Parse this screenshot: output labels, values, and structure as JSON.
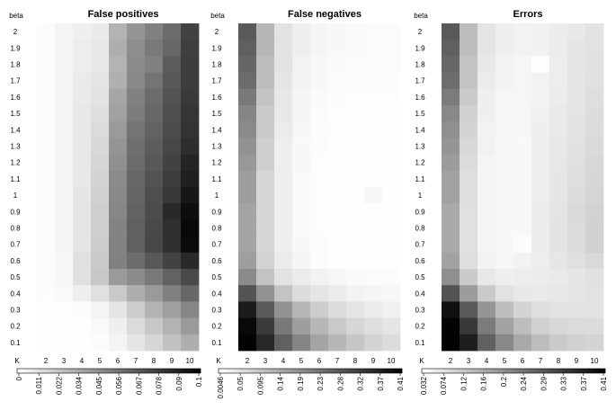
{
  "chart_data": {
    "type": "heatmap",
    "x_label": "K",
    "y_label": "beta",
    "x_ticks": [
      "2",
      "3",
      "4",
      "5",
      "6",
      "7",
      "8",
      "9",
      "10"
    ],
    "y_ticks": [
      "2",
      "1.9",
      "1.8",
      "1.7",
      "1.6",
      "1.5",
      "1.4",
      "1.3",
      "1.2",
      "1.1",
      "1",
      "0.9",
      "0.8",
      "0.7",
      "0.6",
      "0.5",
      "0.4",
      "0.3",
      "0.2",
      "0.1"
    ],
    "colormap": "white-to-black",
    "panels": [
      {
        "title": "False positives",
        "vmin": 0,
        "vmax": 0.1,
        "colorbar_ticks": [
          "0",
          "0.011",
          "0.022",
          "0.034",
          "0.045",
          "0.056",
          "0.067",
          "0.078",
          "0.09",
          "0.1"
        ],
        "values": [
          [
            0.001,
            0.004,
            0.006,
            0.008,
            0.03,
            0.042,
            0.05,
            0.058,
            0.075
          ],
          [
            0.001,
            0.004,
            0.007,
            0.009,
            0.032,
            0.045,
            0.053,
            0.06,
            0.076
          ],
          [
            0.001,
            0.004,
            0.007,
            0.009,
            0.03,
            0.046,
            0.05,
            0.065,
            0.077
          ],
          [
            0.001,
            0.004,
            0.008,
            0.01,
            0.031,
            0.047,
            0.055,
            0.066,
            0.077
          ],
          [
            0.001,
            0.004,
            0.008,
            0.011,
            0.035,
            0.05,
            0.058,
            0.068,
            0.078
          ],
          [
            0.001,
            0.004,
            0.009,
            0.013,
            0.037,
            0.052,
            0.06,
            0.07,
            0.08
          ],
          [
            0.001,
            0.004,
            0.009,
            0.014,
            0.04,
            0.055,
            0.062,
            0.071,
            0.081
          ],
          [
            0.001,
            0.004,
            0.009,
            0.015,
            0.042,
            0.057,
            0.064,
            0.073,
            0.083
          ],
          [
            0.001,
            0.004,
            0.009,
            0.016,
            0.044,
            0.058,
            0.066,
            0.075,
            0.087
          ],
          [
            0.001,
            0.004,
            0.009,
            0.017,
            0.046,
            0.06,
            0.068,
            0.077,
            0.089
          ],
          [
            0.001,
            0.004,
            0.01,
            0.018,
            0.047,
            0.061,
            0.07,
            0.079,
            0.092
          ],
          [
            0.001,
            0.004,
            0.01,
            0.019,
            0.048,
            0.062,
            0.071,
            0.085,
            0.096
          ],
          [
            0.001,
            0.004,
            0.01,
            0.019,
            0.049,
            0.063,
            0.072,
            0.082,
            0.098
          ],
          [
            0.001,
            0.004,
            0.01,
            0.02,
            0.049,
            0.063,
            0.073,
            0.082,
            0.097
          ],
          [
            0.001,
            0.003,
            0.012,
            0.021,
            0.05,
            0.058,
            0.066,
            0.075,
            0.085
          ],
          [
            0.001,
            0.003,
            0.012,
            0.022,
            0.04,
            0.046,
            0.053,
            0.062,
            0.072
          ],
          [
            0.001,
            0.002,
            0.006,
            0.012,
            0.021,
            0.032,
            0.04,
            0.05,
            0.06
          ],
          [
            0.0,
            0.0,
            0.001,
            0.004,
            0.01,
            0.02,
            0.03,
            0.038,
            0.048
          ],
          [
            0.0,
            0.0,
            0.0,
            0.002,
            0.006,
            0.014,
            0.022,
            0.03,
            0.04
          ],
          [
            0.0,
            0.0,
            0.0,
            0.001,
            0.004,
            0.01,
            0.016,
            0.024,
            0.032
          ]
        ]
      },
      {
        "title": "False negatives",
        "vmin": 0.0046,
        "vmax": 0.41,
        "colorbar_ticks": [
          "0.0046",
          "0.05",
          "0.095",
          "0.14",
          "0.19",
          "0.23",
          "0.28",
          "0.32",
          "0.37",
          "0.41"
        ],
        "values": [
          [
            0.27,
            0.12,
            0.05,
            0.03,
            0.02,
            0.015,
            0.012,
            0.01,
            0.01
          ],
          [
            0.26,
            0.12,
            0.05,
            0.03,
            0.02,
            0.015,
            0.012,
            0.01,
            0.01
          ],
          [
            0.25,
            0.11,
            0.05,
            0.025,
            0.015,
            0.012,
            0.01,
            0.01,
            0.01
          ],
          [
            0.24,
            0.11,
            0.045,
            0.025,
            0.015,
            0.01,
            0.008,
            0.008,
            0.008
          ],
          [
            0.22,
            0.1,
            0.04,
            0.02,
            0.012,
            0.008,
            0.006,
            0.006,
            0.006
          ],
          [
            0.2,
            0.09,
            0.04,
            0.02,
            0.01,
            0.006,
            0.005,
            0.005,
            0.005
          ],
          [
            0.19,
            0.09,
            0.035,
            0.018,
            0.008,
            0.006,
            0.005,
            0.005,
            0.005
          ],
          [
            0.18,
            0.08,
            0.03,
            0.015,
            0.008,
            0.005,
            0.005,
            0.005,
            0.005
          ],
          [
            0.17,
            0.08,
            0.03,
            0.014,
            0.007,
            0.005,
            0.005,
            0.005,
            0.005
          ],
          [
            0.16,
            0.07,
            0.03,
            0.013,
            0.007,
            0.005,
            0.005,
            0.005,
            0.005
          ],
          [
            0.16,
            0.07,
            0.03,
            0.013,
            0.007,
            0.005,
            0.005,
            0.015,
            0.005
          ],
          [
            0.15,
            0.07,
            0.03,
            0.013,
            0.007,
            0.005,
            0.005,
            0.005,
            0.005
          ],
          [
            0.15,
            0.07,
            0.03,
            0.013,
            0.007,
            0.005,
            0.005,
            0.005,
            0.005
          ],
          [
            0.15,
            0.07,
            0.03,
            0.015,
            0.008,
            0.005,
            0.005,
            0.005,
            0.005
          ],
          [
            0.16,
            0.075,
            0.035,
            0.02,
            0.01,
            0.006,
            0.005,
            0.005,
            0.005
          ],
          [
            0.19,
            0.1,
            0.05,
            0.035,
            0.025,
            0.018,
            0.012,
            0.01,
            0.008
          ],
          [
            0.28,
            0.18,
            0.1,
            0.06,
            0.045,
            0.035,
            0.025,
            0.02,
            0.016
          ],
          [
            0.37,
            0.27,
            0.18,
            0.12,
            0.085,
            0.06,
            0.045,
            0.035,
            0.028
          ],
          [
            0.4,
            0.32,
            0.22,
            0.16,
            0.12,
            0.09,
            0.07,
            0.055,
            0.045
          ],
          [
            0.41,
            0.35,
            0.26,
            0.2,
            0.15,
            0.12,
            0.095,
            0.075,
            0.06
          ]
        ]
      },
      {
        "title": "Errors",
        "vmin": 0.032,
        "vmax": 0.41,
        "colorbar_ticks": [
          "0.032",
          "0.074",
          "0.12",
          "0.16",
          "0.2",
          "0.24",
          "0.29",
          "0.33",
          "0.37",
          "0.41"
        ],
        "values": [
          [
            0.28,
            0.13,
            0.07,
            0.055,
            0.05,
            0.052,
            0.06,
            0.065,
            0.075
          ],
          [
            0.27,
            0.13,
            0.07,
            0.055,
            0.05,
            0.052,
            0.06,
            0.068,
            0.075
          ],
          [
            0.26,
            0.12,
            0.065,
            0.05,
            0.045,
            0.033,
            0.058,
            0.07,
            0.076
          ],
          [
            0.25,
            0.12,
            0.06,
            0.05,
            0.045,
            0.05,
            0.058,
            0.07,
            0.078
          ],
          [
            0.23,
            0.11,
            0.055,
            0.045,
            0.045,
            0.05,
            0.06,
            0.07,
            0.08
          ],
          [
            0.21,
            0.1,
            0.055,
            0.045,
            0.045,
            0.052,
            0.062,
            0.072,
            0.082
          ],
          [
            0.2,
            0.095,
            0.05,
            0.045,
            0.045,
            0.055,
            0.064,
            0.074,
            0.085
          ],
          [
            0.19,
            0.09,
            0.05,
            0.043,
            0.042,
            0.055,
            0.065,
            0.076,
            0.087
          ],
          [
            0.18,
            0.085,
            0.048,
            0.042,
            0.042,
            0.057,
            0.067,
            0.078,
            0.09
          ],
          [
            0.17,
            0.08,
            0.048,
            0.042,
            0.042,
            0.058,
            0.068,
            0.08,
            0.092
          ],
          [
            0.17,
            0.08,
            0.048,
            0.042,
            0.042,
            0.058,
            0.07,
            0.082,
            0.094
          ],
          [
            0.16,
            0.078,
            0.048,
            0.042,
            0.042,
            0.06,
            0.072,
            0.086,
            0.098
          ],
          [
            0.16,
            0.078,
            0.048,
            0.042,
            0.042,
            0.06,
            0.073,
            0.085,
            0.1
          ],
          [
            0.16,
            0.078,
            0.048,
            0.043,
            0.035,
            0.06,
            0.073,
            0.085,
            0.1
          ],
          [
            0.17,
            0.08,
            0.05,
            0.045,
            0.05,
            0.058,
            0.068,
            0.078,
            0.088
          ],
          [
            0.2,
            0.11,
            0.065,
            0.055,
            0.058,
            0.06,
            0.062,
            0.068,
            0.076
          ],
          [
            0.29,
            0.18,
            0.11,
            0.075,
            0.065,
            0.064,
            0.066,
            0.07,
            0.075
          ],
          [
            0.39,
            0.28,
            0.19,
            0.13,
            0.095,
            0.08,
            0.075,
            0.073,
            0.075
          ],
          [
            0.41,
            0.33,
            0.23,
            0.17,
            0.13,
            0.1,
            0.09,
            0.085,
            0.083
          ],
          [
            0.41,
            0.37,
            0.27,
            0.21,
            0.16,
            0.13,
            0.11,
            0.1,
            0.095
          ]
        ]
      }
    ]
  }
}
